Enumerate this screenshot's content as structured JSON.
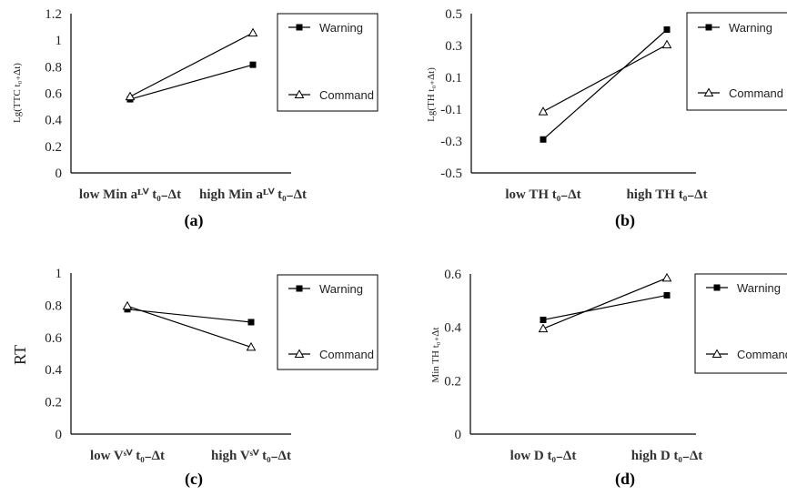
{
  "chart_data": [
    {
      "type": "line",
      "caption": "(a)",
      "ylabel": "Lg(TTC_t0+Δt)",
      "ylabel_display": "Lg(TTC t₀₊Δt)",
      "categories": [
        "low Min a^LV_t0−Δt",
        "high Min a^LV_t0−Δt"
      ],
      "categories_display": [
        "low Min aᴸⱽ t₀₋Δt",
        "high Min aᴸⱽ t₀₋Δt"
      ],
      "ylim": [
        0,
        1.2
      ],
      "yticks": [
        "0",
        "0.2",
        "0.4",
        "0.6",
        "0.8",
        "1",
        "1.2"
      ],
      "series": [
        {
          "name": "Warning",
          "marker": "square",
          "values": [
            0.555,
            0.815
          ]
        },
        {
          "name": "Command",
          "marker": "triangle",
          "values": [
            0.575,
            1.055
          ]
        }
      ],
      "legend": "right"
    },
    {
      "type": "line",
      "caption": "(b)",
      "ylabel": "Lg(TH_t0+Δt)",
      "ylabel_display": "Lg(TH t₀₊Δt)",
      "categories": [
        "low TH_t0−Δt",
        "high TH_t0−Δt"
      ],
      "categories_display": [
        "low TH t₀₋Δt",
        "high TH t₀₋Δt"
      ],
      "ylim": [
        -0.5,
        0.5
      ],
      "yticks": [
        "-0.5",
        "-0.3",
        "-0.1",
        "0.1",
        "0.3",
        "0.5"
      ],
      "series": [
        {
          "name": "Warning",
          "marker": "square",
          "values": [
            -0.29,
            0.4
          ]
        },
        {
          "name": "Command",
          "marker": "triangle",
          "values": [
            -0.115,
            0.305
          ]
        }
      ],
      "legend": "right"
    },
    {
      "type": "line",
      "caption": "(c)",
      "ylabel": "RT",
      "ylabel_display": "RT",
      "categories": [
        "low V^SV_t0−Δt",
        "high V^SV_t0−Δt"
      ],
      "categories_display": [
        "low Vˢⱽ t₀₋Δt",
        "high Vˢⱽ t₀₋Δt"
      ],
      "ylim": [
        0,
        1
      ],
      "yticks": [
        "0",
        "0.2",
        "0.4",
        "0.6",
        "0.8",
        "1"
      ],
      "series": [
        {
          "name": "Warning",
          "marker": "square",
          "values": [
            0.775,
            0.695
          ]
        },
        {
          "name": "Command",
          "marker": "triangle",
          "values": [
            0.795,
            0.54
          ]
        }
      ],
      "legend": "right"
    },
    {
      "type": "line",
      "caption": "(d)",
      "ylabel": "Min TH_t0+Δt",
      "ylabel_display": "Min TH t₀₊Δt",
      "categories": [
        "low D_t0−Δt",
        "high D_t0−Δt"
      ],
      "categories_display": [
        "low D t₀₋Δt",
        "high D t₀₋Δt"
      ],
      "ylim": [
        0,
        0.6
      ],
      "yticks": [
        "0",
        "0.2",
        "0.4",
        "0.6"
      ],
      "series": [
        {
          "name": "Warning",
          "marker": "square",
          "values": [
            0.428,
            0.52
          ]
        },
        {
          "name": "Command",
          "marker": "triangle",
          "values": [
            0.395,
            0.585
          ]
        }
      ],
      "legend": "right"
    }
  ]
}
